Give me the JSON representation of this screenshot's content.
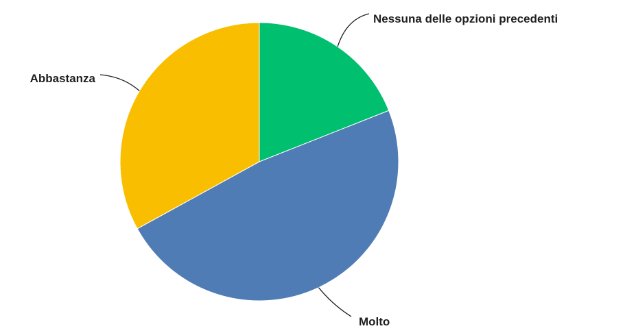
{
  "chart_data": {
    "type": "pie",
    "title": "",
    "categories": [
      "Nessuna delle opzioni precedenti",
      "Molto",
      "Abbastanza"
    ],
    "values": [
      19,
      48,
      33
    ],
    "unit": "%",
    "start_angle": "12 o'clock",
    "direction": "clockwise",
    "legend": "none",
    "labels_outside_with_leader_lines": true
  },
  "colors": {
    "slices": [
      "#00bf6f",
      "#507cb6",
      "#f9be00"
    ],
    "leader_line": "#1f1f1f",
    "slice_border": "#ffffff"
  }
}
